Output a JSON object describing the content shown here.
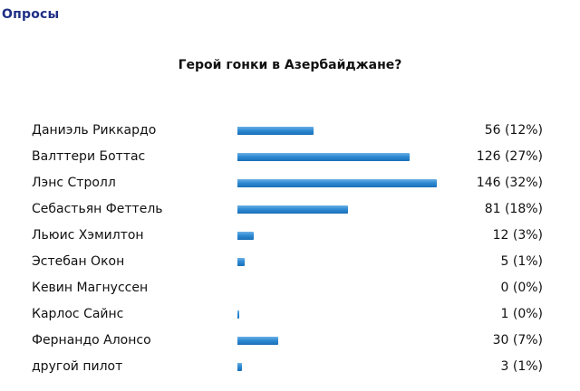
{
  "section_title": "Опросы",
  "question": "Герой гонки в Азербайджане?",
  "options": [
    {
      "label": "Даниэль Риккардо",
      "result": "56 (12%)",
      "votes": 56,
      "percent": 12
    },
    {
      "label": "Валттери Боттас",
      "result": "126 (27%)",
      "votes": 126,
      "percent": 27
    },
    {
      "label": "Лэнс Стролл",
      "result": "146 (32%)",
      "votes": 146,
      "percent": 32
    },
    {
      "label": "Себастьян Феттель",
      "result": "81 (18%)",
      "votes": 81,
      "percent": 18
    },
    {
      "label": "Льюис Хэмилтон",
      "result": "12 (3%)",
      "votes": 12,
      "percent": 3
    },
    {
      "label": "Эстебан Окон",
      "result": "5 (1%)",
      "votes": 5,
      "percent": 1
    },
    {
      "label": "Кевин Магнуссен",
      "result": "0 (0%)",
      "votes": 0,
      "percent": 0
    },
    {
      "label": "Карлос Сайнс",
      "result": "1 (0%)",
      "votes": 1,
      "percent": 0
    },
    {
      "label": "Фернандо Алонсо",
      "result": "30 (7%)",
      "votes": 30,
      "percent": 7
    },
    {
      "label": "другой пилот",
      "result": "3 (1%)",
      "votes": 3,
      "percent": 1
    }
  ],
  "colors": {
    "title": "#1f2f86",
    "bar": "#2f8bd3"
  }
}
